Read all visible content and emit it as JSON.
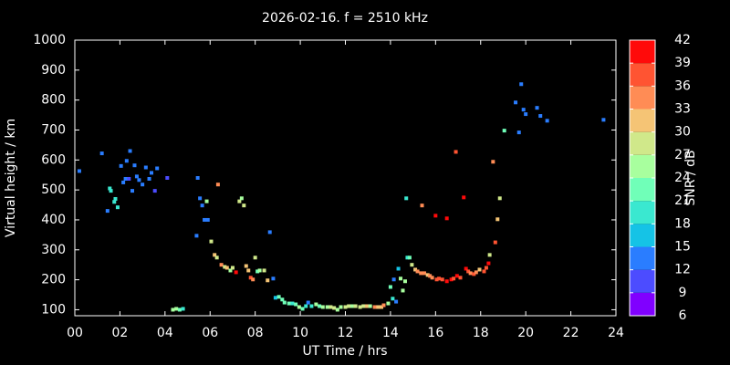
{
  "chart_data": {
    "type": "scatter",
    "title": "2026-02-16. f = 2510 kHz",
    "xlabel": "UT Time / hrs",
    "ylabel": "Virtual height / km",
    "colorbar_label": "SNR / dB",
    "xlim": [
      0,
      24
    ],
    "ylim": [
      80,
      1000
    ],
    "zlim": [
      6,
      42
    ],
    "xticks": [
      {
        "value": 0,
        "label": "00"
      },
      {
        "value": 2,
        "label": "02"
      },
      {
        "value": 4,
        "label": "04"
      },
      {
        "value": 6,
        "label": "06"
      },
      {
        "value": 8,
        "label": "08"
      },
      10,
      12,
      14,
      16,
      18,
      20,
      22,
      24
    ],
    "yticks": [
      100,
      200,
      300,
      400,
      500,
      600,
      700,
      800,
      900,
      1000
    ],
    "zticks": [
      6,
      9,
      12,
      15,
      18,
      21,
      24,
      27,
      30,
      33,
      36,
      39,
      42
    ],
    "colormap": [
      "#8000ff",
      "#4c4cff",
      "#2a7dff",
      "#15c3e6",
      "#3ae8d0",
      "#70ffb8",
      "#a8ff9e",
      "#d0e88a",
      "#f5c475",
      "#ff8c55",
      "#ff5432",
      "#ff0a0a"
    ],
    "x": [
      0.2,
      1.2,
      1.45,
      1.55,
      1.6,
      1.75,
      1.8,
      1.9,
      2.05,
      2.15,
      2.25,
      2.3,
      2.4,
      2.45,
      2.55,
      2.65,
      2.75,
      2.85,
      3.0,
      3.15,
      3.3,
      3.4,
      3.55,
      3.65,
      4.1,
      4.35,
      4.5,
      4.65,
      4.8,
      5.4,
      5.45,
      5.55,
      5.65,
      5.75,
      5.9,
      5.85,
      6.05,
      6.2,
      6.3,
      6.35,
      6.5,
      6.65,
      6.75,
      6.9,
      7.0,
      7.15,
      7.3,
      7.4,
      7.5,
      7.6,
      7.7,
      7.8,
      7.9,
      8.0,
      8.1,
      8.2,
      8.4,
      8.55,
      8.65,
      8.8,
      8.9,
      9.05,
      9.2,
      9.3,
      9.5,
      9.65,
      9.8,
      9.95,
      10.1,
      10.25,
      10.35,
      10.5,
      10.7,
      10.85,
      11.0,
      11.2,
      11.35,
      11.5,
      11.65,
      11.8,
      12.0,
      12.15,
      12.3,
      12.45,
      12.65,
      12.8,
      12.95,
      13.1,
      13.3,
      13.45,
      13.6,
      13.7,
      13.9,
      14.0,
      14.1,
      14.15,
      14.25,
      14.35,
      14.45,
      14.55,
      14.65,
      14.7,
      14.75,
      14.85,
      14.95,
      15.1,
      15.2,
      15.35,
      15.4,
      15.5,
      15.65,
      15.75,
      15.85,
      16.0,
      16.05,
      16.15,
      16.3,
      16.5,
      16.5,
      16.7,
      16.8,
      16.9,
      16.95,
      17.1,
      17.25,
      17.35,
      17.45,
      17.55,
      17.7,
      17.8,
      17.95,
      18.15,
      18.25,
      18.35,
      18.4,
      18.55,
      18.65,
      18.75,
      18.85,
      19.05,
      19.55,
      19.7,
      19.8,
      19.9,
      20.0,
      20.5,
      20.65,
      20.95,
      23.45
    ],
    "y": [
      563,
      622,
      430,
      505,
      497,
      460,
      470,
      442,
      580,
      525,
      537,
      597,
      537,
      630,
      497,
      582,
      545,
      533,
      518,
      575,
      537,
      557,
      497,
      572,
      540,
      100,
      103,
      100,
      103,
      347,
      540,
      472,
      448,
      400,
      400,
      462,
      328,
      283,
      274,
      518,
      250,
      243,
      240,
      231,
      240,
      225,
      462,
      472,
      448,
      246,
      231,
      207,
      201,
      274,
      228,
      231,
      231,
      198,
      359,
      204,
      140,
      143,
      134,
      124,
      121,
      121,
      118,
      109,
      103,
      112,
      124,
      112,
      118,
      112,
      109,
      109,
      109,
      106,
      100,
      109,
      109,
      112,
      112,
      112,
      109,
      112,
      112,
      112,
      109,
      109,
      109,
      115,
      121,
      176,
      137,
      201,
      127,
      237,
      204,
      164,
      195,
      472,
      274,
      274,
      250,
      234,
      228,
      222,
      448,
      222,
      216,
      213,
      207,
      414,
      201,
      204,
      201,
      405,
      195,
      201,
      204,
      627,
      213,
      207,
      475,
      237,
      228,
      222,
      219,
      225,
      234,
      228,
      240,
      255,
      283,
      594,
      325,
      402,
      472,
      698,
      792,
      692,
      853,
      768,
      753,
      774,
      747,
      731,
      734
    ],
    "snr": [
      12,
      12,
      12,
      18,
      18,
      18,
      18,
      18,
      12,
      12,
      12,
      12,
      9,
      12,
      12,
      12,
      12,
      12,
      12,
      12,
      12,
      12,
      9,
      12,
      9,
      24,
      24,
      21,
      18,
      12,
      12,
      12,
      12,
      12,
      12,
      24,
      27,
      30,
      27,
      33,
      33,
      27,
      30,
      24,
      27,
      39,
      27,
      24,
      27,
      30,
      30,
      36,
      33,
      27,
      21,
      24,
      27,
      30,
      12,
      12,
      15,
      21,
      21,
      21,
      21,
      18,
      21,
      24,
      21,
      18,
      12,
      18,
      24,
      21,
      24,
      24,
      27,
      27,
      24,
      24,
      27,
      27,
      24,
      27,
      27,
      27,
      30,
      24,
      33,
      30,
      30,
      33,
      24,
      21,
      18,
      12,
      12,
      15,
      24,
      24,
      24,
      18,
      18,
      21,
      27,
      30,
      33,
      33,
      33,
      33,
      30,
      33,
      33,
      39,
      36,
      36,
      36,
      39,
      39,
      39,
      36,
      36,
      39,
      36,
      39,
      39,
      36,
      33,
      36,
      33,
      30,
      36,
      36,
      39,
      27,
      33,
      36,
      30,
      27,
      21,
      12,
      12,
      12,
      12,
      12,
      12,
      12,
      12,
      12
    ]
  }
}
